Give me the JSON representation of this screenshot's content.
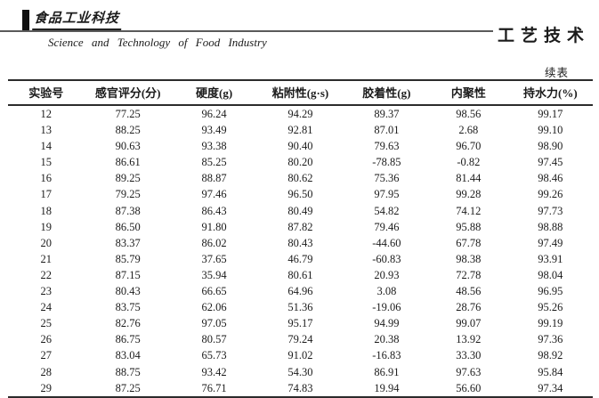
{
  "masthead": {
    "logo_cn": "食品工业科技",
    "journal_en": "Science and Technology of Food Industry",
    "section_cn": "工艺技术"
  },
  "table": {
    "continued_label": "续表",
    "columns": [
      "实验号",
      "感官评分(分)",
      "硬度(g)",
      "粘附性(g·s)",
      "胶着性(g)",
      "内聚性",
      "持水力(%)"
    ],
    "rows": [
      [
        "12",
        "77.25",
        "96.24",
        "94.29",
        "89.37",
        "98.56",
        "99.17"
      ],
      [
        "13",
        "88.25",
        "93.49",
        "92.81",
        "87.01",
        "2.68",
        "99.10"
      ],
      [
        "14",
        "90.63",
        "93.38",
        "90.40",
        "79.63",
        "96.70",
        "98.90"
      ],
      [
        "15",
        "86.61",
        "85.25",
        "80.20",
        "-78.85",
        "-0.82",
        "97.45"
      ],
      [
        "16",
        "89.25",
        "88.87",
        "80.62",
        "75.36",
        "81.44",
        "98.46"
      ],
      [
        "17",
        "79.25",
        "97.46",
        "96.50",
        "97.95",
        "99.28",
        "99.26"
      ],
      [
        "18",
        "87.38",
        "86.43",
        "80.49",
        "54.82",
        "74.12",
        "97.73"
      ],
      [
        "19",
        "86.50",
        "91.80",
        "87.82",
        "79.46",
        "95.88",
        "98.88"
      ],
      [
        "20",
        "83.37",
        "86.02",
        "80.43",
        "-44.60",
        "67.78",
        "97.49"
      ],
      [
        "21",
        "85.79",
        "37.65",
        "46.79",
        "-60.83",
        "98.38",
        "93.91"
      ],
      [
        "22",
        "87.15",
        "35.94",
        "80.61",
        "20.93",
        "72.78",
        "98.04"
      ],
      [
        "23",
        "80.43",
        "66.65",
        "64.96",
        "3.08",
        "48.56",
        "96.95"
      ],
      [
        "24",
        "83.75",
        "62.06",
        "51.36",
        "-19.06",
        "28.76",
        "95.26"
      ],
      [
        "25",
        "82.76",
        "97.05",
        "95.17",
        "94.99",
        "99.07",
        "99.19"
      ],
      [
        "26",
        "86.75",
        "80.57",
        "79.24",
        "20.38",
        "13.92",
        "97.36"
      ],
      [
        "27",
        "83.04",
        "65.73",
        "91.02",
        "-16.83",
        "33.30",
        "98.92"
      ],
      [
        "28",
        "88.75",
        "93.42",
        "54.30",
        "86.91",
        "97.63",
        "95.84"
      ],
      [
        "29",
        "87.25",
        "76.71",
        "74.83",
        "19.94",
        "56.60",
        "97.34"
      ]
    ]
  },
  "colors": {
    "text": "#1b1b1b",
    "rule": "#2b2b2b",
    "masthead_rule": "#5a5a5a"
  }
}
